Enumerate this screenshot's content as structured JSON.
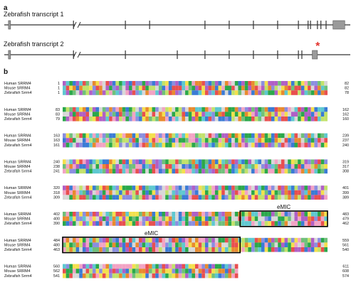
{
  "panel_a": {
    "letter": "a",
    "transcript1": {
      "label": "Zebrafish transcript 1",
      "exons": [
        [
          0.012,
          0.018
        ],
        [
          0.95,
          0.984
        ]
      ],
      "intron_ticks": [
        0.2,
        0.35,
        0.42,
        0.58,
        0.65,
        0.72,
        0.79,
        0.85,
        0.878,
        0.885,
        0.905,
        0.915,
        0.93
      ],
      "break_at": 0.21
    },
    "transcript2": {
      "label": "Zebrafish transcript 2",
      "exons": [
        [
          0.012,
          0.018
        ],
        [
          0.89,
          0.905
        ]
      ],
      "intron_ticks": [
        0.2,
        0.35,
        0.5,
        0.58,
        0.65,
        0.72,
        0.79,
        0.85,
        0.86
      ],
      "break_at": 0.21,
      "marker": "*",
      "marker_color": "#e3342f"
    }
  },
  "panel_b": {
    "letter": "b",
    "species": [
      "Human SRRM4",
      "Mouse SRRM4",
      "Zebrafish Srrm4"
    ],
    "blocks": [
      {
        "starts": [
          "1",
          "1",
          "1"
        ],
        "ends": [
          "82",
          "82",
          "78"
        ]
      },
      {
        "starts": [
          "83",
          "83",
          "79"
        ],
        "ends": [
          "162",
          "162",
          "160"
        ]
      },
      {
        "starts": [
          "163",
          "163",
          "161"
        ],
        "ends": [
          "239",
          "237",
          "240"
        ]
      },
      {
        "starts": [
          "240",
          "238",
          "241"
        ],
        "ends": [
          "319",
          "317",
          "308"
        ]
      },
      {
        "starts": [
          "320",
          "318",
          "309"
        ],
        "ends": [
          "401",
          "399",
          "389"
        ]
      },
      {
        "starts": [
          "402",
          "400",
          "390"
        ],
        "ends": [
          "483",
          "479",
          "462"
        ]
      },
      {
        "starts": [
          "484",
          "480",
          "463"
        ],
        "ends": [
          "559",
          "561",
          "540"
        ]
      },
      {
        "starts": [
          "560",
          "562",
          "541"
        ],
        "ends": [
          "611",
          "608",
          "574"
        ]
      }
    ],
    "boxes": [
      {
        "label": "eMIC",
        "block": 5,
        "from": 0.67,
        "to": 1.0
      },
      {
        "label": "eMIC",
        "block": 6,
        "from": 0.0,
        "to": 0.67
      }
    ]
  },
  "colors": {
    "line": "#333333",
    "exon": "#9a9a9a",
    "aa_palette": [
      "#e84f4f",
      "#2aa84a",
      "#3a7bd5",
      "#f4e04d",
      "#e88a2e",
      "#b05fc6",
      "#5ec8d0",
      "#d8d8d8",
      "#c2e26a",
      "#f2a3c4",
      "#6fc07a",
      "#8a8ee0"
    ]
  }
}
